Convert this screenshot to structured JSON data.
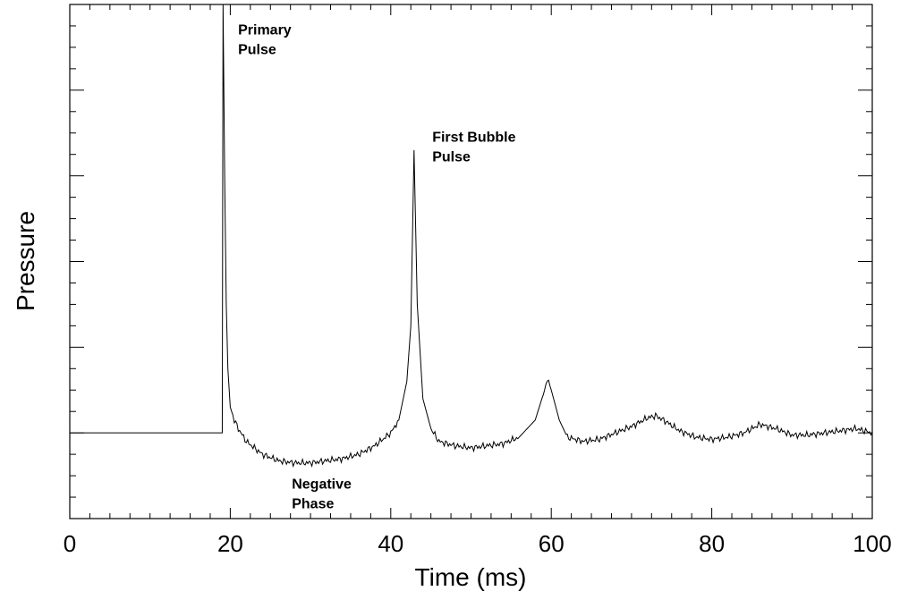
{
  "chart_data": {
    "type": "line",
    "title": "",
    "xlabel": "Time (ms)",
    "ylabel": "Pressure",
    "xlim": [
      0,
      100
    ],
    "ylim": [
      -20,
      100
    ],
    "x_ticks": [
      0,
      20,
      40,
      60,
      80,
      100
    ],
    "x_tick_labels": [
      "0",
      "20",
      "40",
      "60",
      "80",
      "100"
    ],
    "y_tick_labels_shown": false,
    "grid": false,
    "legend": "none",
    "series_color": "#000000",
    "series": [
      {
        "x": [
          0,
          19,
          19.1,
          19.3,
          19.5,
          19.7,
          20,
          20.5,
          21,
          22,
          24,
          26,
          28,
          30,
          32,
          34,
          36,
          38,
          40,
          41,
          42,
          42.5,
          42.9,
          43.3,
          44,
          45,
          46,
          48,
          50,
          52,
          54,
          56,
          58,
          59,
          59.5,
          60,
          61,
          62,
          64,
          66,
          68,
          70,
          72,
          73,
          74,
          76,
          78,
          80,
          82,
          84,
          86,
          88,
          90,
          92,
          94,
          96,
          98,
          100
        ],
        "y": [
          0,
          0,
          100,
          60,
          30,
          15,
          6,
          3,
          1,
          -2,
          -5,
          -6.5,
          -7,
          -7,
          -6.5,
          -6,
          -5,
          -3,
          0,
          3,
          12,
          25,
          66,
          30,
          8,
          1,
          -2,
          -3,
          -3.5,
          -3,
          -2.5,
          -1,
          3,
          9,
          12.5,
          10,
          3,
          -1,
          -2,
          -1.5,
          0,
          1.5,
          3.5,
          4,
          3,
          0.5,
          -1,
          -1.5,
          -1,
          0,
          2,
          1,
          -0.5,
          -0.5,
          0,
          0.5,
          1,
          0
        ]
      }
    ],
    "annotations": [
      {
        "text_lines": [
          "Primary",
          "Pulse"
        ],
        "x": 19.3,
        "y": 93
      },
      {
        "text_lines": [
          "First Bubble",
          "Pulse"
        ],
        "x": 43.5,
        "y": 68
      },
      {
        "text_lines": [
          "Negative",
          "Phase"
        ],
        "x": 26,
        "y": -13
      }
    ]
  }
}
